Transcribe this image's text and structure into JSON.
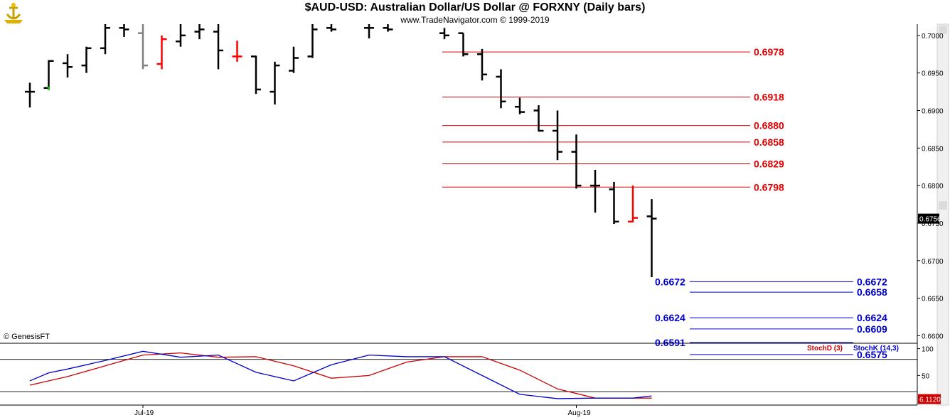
{
  "header": {
    "title": "$AUD-USD:  Australian Dollar/US Dollar @ FORXNY  (Daily bars)",
    "subtitle": "www.TradeNavigator.com © 1999-2019",
    "credit": "© GenesisFT",
    "logo_icon": "genesis-logo-icon"
  },
  "chart_data": [
    {
      "type": "bar",
      "subtype": "ohlc",
      "title": "$AUD-USD:  Australian Dollar/US Dollar @ FORXNY  (Daily bars)",
      "ylim": [
        0.659,
        0.7015
      ],
      "y_ticks": [
        "0.7000",
        "0.6950",
        "0.6900",
        "0.6850",
        "0.6800",
        "0.6750",
        "0.6700",
        "0.6650",
        "0.6600"
      ],
      "x_labels": [
        {
          "label": "Jul-19",
          "index": 6
        },
        {
          "label": "Aug-19",
          "index": 29
        }
      ],
      "last_price": "0.6756",
      "colors": {
        "up": "#000000",
        "down": "#000000",
        "red": "#ff0000",
        "gray": "#808080",
        "green": "#00cc00"
      },
      "bars": [
        {
          "i": 0,
          "o": 0.6925,
          "h": 0.6937,
          "l": 0.6904,
          "c": 0.6925,
          "color": "#000000"
        },
        {
          "i": 1,
          "o": 0.693,
          "h": 0.6967,
          "l": 0.6928,
          "c": 0.6966,
          "color": "#000000"
        },
        {
          "i": 2,
          "o": 0.6963,
          "h": 0.6975,
          "l": 0.6944,
          "c": 0.6958,
          "color": "#000000"
        },
        {
          "i": 3,
          "o": 0.696,
          "h": 0.6985,
          "l": 0.695,
          "c": 0.6983,
          "color": "#000000"
        },
        {
          "i": 4,
          "o": 0.6983,
          "h": 0.7015,
          "l": 0.6975,
          "c": 0.701,
          "color": "#000000"
        },
        {
          "i": 5,
          "o": 0.701,
          "h": 0.7015,
          "l": 0.6998,
          "c": 0.7008,
          "color": "#000000"
        },
        {
          "i": 6,
          "o": 0.7003,
          "h": 0.7015,
          "l": 0.6955,
          "c": 0.696,
          "color": "#808080"
        },
        {
          "i": 7,
          "o": 0.6962,
          "h": 0.7,
          "l": 0.6955,
          "c": 0.6995,
          "color": "#ff0000"
        },
        {
          "i": 8,
          "o": 0.6992,
          "h": 0.7015,
          "l": 0.6985,
          "c": 0.7,
          "color": "#000000"
        },
        {
          "i": 9,
          "o": 0.7005,
          "h": 0.7015,
          "l": 0.6995,
          "c": 0.7008,
          "color": "#000000"
        },
        {
          "i": 10,
          "o": 0.7005,
          "h": 0.7015,
          "l": 0.6955,
          "c": 0.698,
          "color": "#000000"
        },
        {
          "i": 11,
          "o": 0.6972,
          "h": 0.6993,
          "l": 0.6965,
          "c": 0.6972,
          "color": "#ff0000"
        },
        {
          "i": 12,
          "o": 0.6972,
          "h": 0.6973,
          "l": 0.6922,
          "c": 0.6928,
          "color": "#000000"
        },
        {
          "i": 13,
          "o": 0.6925,
          "h": 0.6965,
          "l": 0.6908,
          "c": 0.696,
          "color": "#000000"
        },
        {
          "i": 14,
          "o": 0.6953,
          "h": 0.6985,
          "l": 0.695,
          "c": 0.697,
          "color": "#000000"
        },
        {
          "i": 15,
          "o": 0.6972,
          "h": 0.7015,
          "l": 0.697,
          "c": 0.7008,
          "color": "#000000"
        },
        {
          "i": 16,
          "o": 0.701,
          "h": 0.7015,
          "l": 0.7005,
          "c": 0.7008,
          "color": "#000000"
        },
        {
          "i": 18,
          "o": 0.701,
          "h": 0.7015,
          "l": 0.6996,
          "c": 0.701,
          "color": "#000000"
        },
        {
          "i": 19,
          "o": 0.701,
          "h": 0.7015,
          "l": 0.7005,
          "c": 0.7008,
          "color": "#000000"
        },
        {
          "i": 22,
          "o": 0.7003,
          "h": 0.701,
          "l": 0.6995,
          "c": 0.7,
          "color": "#000000"
        },
        {
          "i": 23,
          "o": 0.7003,
          "h": 0.7003,
          "l": 0.6972,
          "c": 0.6975,
          "color": "#000000"
        },
        {
          "i": 24,
          "o": 0.6975,
          "h": 0.6982,
          "l": 0.694,
          "c": 0.6948,
          "color": "#000000"
        },
        {
          "i": 25,
          "o": 0.6945,
          "h": 0.6955,
          "l": 0.6903,
          "c": 0.6912,
          "color": "#000000"
        },
        {
          "i": 26,
          "o": 0.6905,
          "h": 0.6917,
          "l": 0.6895,
          "c": 0.6898,
          "color": "#000000"
        },
        {
          "i": 27,
          "o": 0.69,
          "h": 0.6907,
          "l": 0.6872,
          "c": 0.6873,
          "color": "#000000"
        },
        {
          "i": 28,
          "o": 0.6873,
          "h": 0.69,
          "l": 0.6834,
          "c": 0.6845,
          "color": "#000000"
        },
        {
          "i": 29,
          "o": 0.6845,
          "h": 0.6868,
          "l": 0.6796,
          "c": 0.68,
          "color": "#000000"
        },
        {
          "i": 30,
          "o": 0.68,
          "h": 0.6821,
          "l": 0.6764,
          "c": 0.68,
          "color": "#000000"
        },
        {
          "i": 31,
          "o": 0.6795,
          "h": 0.6805,
          "l": 0.6749,
          "c": 0.6752,
          "color": "#000000"
        },
        {
          "i": 32,
          "o": 0.6752,
          "h": 0.68,
          "l": 0.6751,
          "c": 0.6757,
          "color": "#ff0000"
        },
        {
          "i": 33,
          "o": 0.6759,
          "h": 0.6782,
          "l": 0.6678,
          "c": 0.6756,
          "color": "#000000"
        }
      ],
      "levels": [
        {
          "value": 0.6978,
          "label": "0.6978",
          "color": "#e00000",
          "x0": 22,
          "x1": 36,
          "label_side": "right"
        },
        {
          "value": 0.6918,
          "label": "0.6918",
          "color": "#e00000",
          "x0": 22,
          "x1": 36,
          "label_side": "right"
        },
        {
          "value": 0.688,
          "label": "0.6880",
          "color": "#e00000",
          "x0": 22,
          "x1": 36,
          "label_side": "right"
        },
        {
          "value": 0.6858,
          "label": "0.6858",
          "color": "#e00000",
          "x0": 22,
          "x1": 36,
          "label_side": "right"
        },
        {
          "value": 0.6829,
          "label": "0.6829",
          "color": "#e00000",
          "x0": 22,
          "x1": 36,
          "label_side": "right"
        },
        {
          "value": 0.6798,
          "label": "0.6798",
          "color": "#e00000",
          "x0": 22,
          "x1": 36,
          "label_side": "right"
        },
        {
          "value": 0.6672,
          "label": "0.6672",
          "color": "#0000cc",
          "x0": 33,
          "x1": 41,
          "label_side": "both"
        },
        {
          "value": 0.6658,
          "label": "0.6658",
          "color": "#0000cc",
          "x0": 33,
          "x1": 41,
          "label_side": "right"
        },
        {
          "value": 0.6624,
          "label": "0.6624",
          "color": "#0000cc",
          "x0": 33,
          "x1": 41,
          "label_side": "both"
        },
        {
          "value": 0.6609,
          "label": "0.6609",
          "color": "#0000cc",
          "x0": 33,
          "x1": 41,
          "label_side": "right"
        },
        {
          "value": 0.6591,
          "label": "0.6591",
          "color": "#0000cc",
          "x0": 33,
          "x1": 41,
          "label_side": "left"
        },
        {
          "value": 0.6575,
          "label": "0.6575",
          "color": "#0000cc",
          "x0": 33,
          "x1": 41,
          "label_side": "right"
        }
      ]
    },
    {
      "type": "line",
      "title": "",
      "ylim": [
        -5,
        110
      ],
      "y_ticks": [
        "100",
        "50"
      ],
      "reference_lines": [
        80,
        20
      ],
      "last_value": "6.1120",
      "legend_placement": "top-right",
      "series": [
        {
          "name": "StochD (3)",
          "color": "#cc0000",
          "x": [
            0,
            2,
            4,
            6,
            8,
            10,
            12,
            14,
            16,
            18,
            20,
            22,
            24,
            26,
            28,
            30,
            32,
            33
          ],
          "values": [
            32,
            48,
            68,
            88,
            92,
            84,
            85,
            68,
            45,
            50,
            75,
            85,
            85,
            60,
            25,
            8,
            8,
            8
          ]
        },
        {
          "name": "StochK (14,3)",
          "color": "#0000cc",
          "x": [
            0,
            1,
            2,
            4,
            6,
            8,
            10,
            12,
            14,
            16,
            18,
            20,
            22,
            24,
            26,
            28,
            30,
            32,
            33
          ],
          "values": [
            40,
            55,
            62,
            78,
            95,
            84,
            88,
            56,
            40,
            70,
            88,
            85,
            85,
            50,
            15,
            7,
            8,
            8,
            12
          ]
        }
      ]
    }
  ]
}
